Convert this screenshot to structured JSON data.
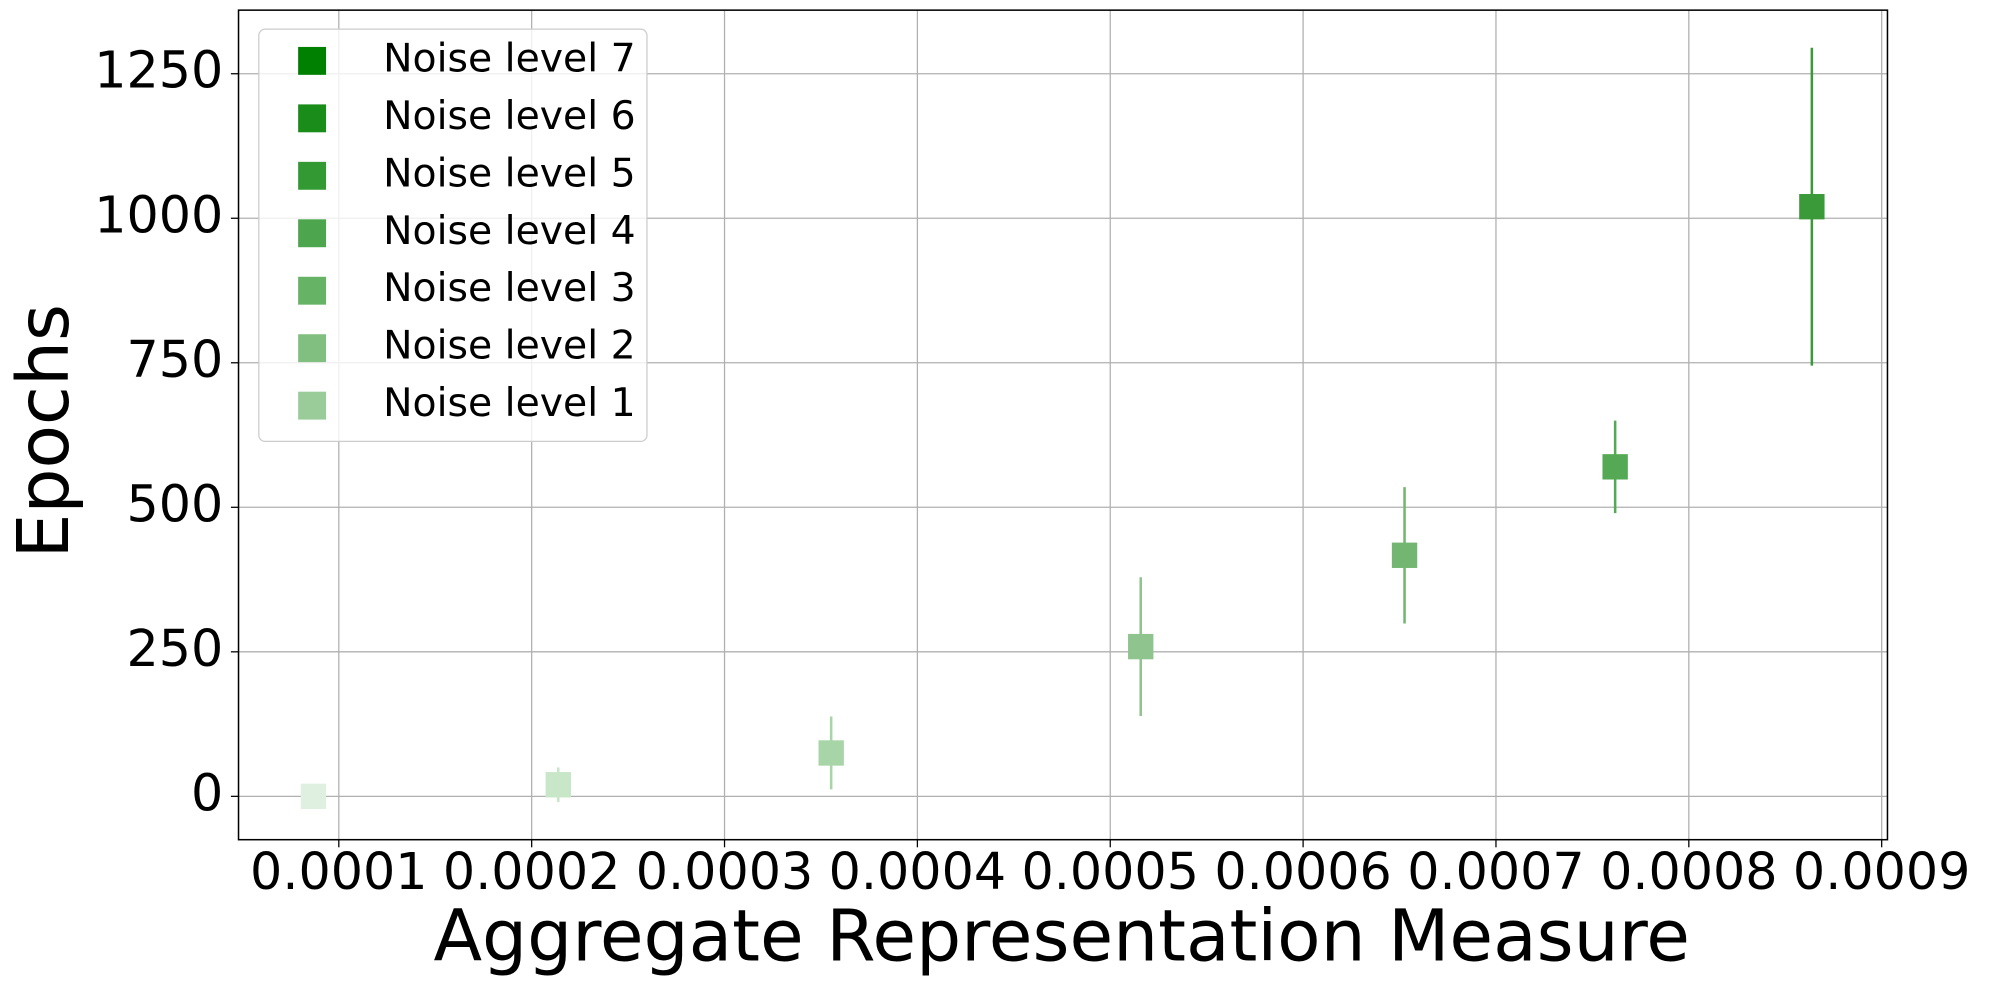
{
  "chart_data": {
    "type": "errorbar",
    "xlabel": "Aggregate Representation Measure",
    "ylabel": "Epochs",
    "xlim": [
      4.8e-05,
      0.000903
    ],
    "ylim": [
      -75,
      1360
    ],
    "xticks": [
      0.0001,
      0.0002,
      0.0003,
      0.0004,
      0.0005,
      0.0006,
      0.0007,
      0.0008,
      0.0009
    ],
    "yticks": [
      0,
      250,
      500,
      750,
      1000,
      1250
    ],
    "grid": true,
    "legend": "upper left",
    "series": [
      {
        "name": "Noise level 7",
        "color": "#3a9a3a",
        "legend_color": "#008000",
        "x": [
          0.0008638
        ],
        "values": [
          1020
        ],
        "errors": [
          275
        ]
      },
      {
        "name": "Noise level 6",
        "color": "#55a955",
        "legend_color": "#1a8c1a",
        "x": [
          0.0007618
        ],
        "values": [
          570
        ],
        "errors": [
          80
        ]
      },
      {
        "name": "Noise level 5",
        "color": "#72b672",
        "legend_color": "#339933",
        "x": [
          0.0006526
        ],
        "values": [
          417
        ],
        "errors": [
          118
        ]
      },
      {
        "name": "Noise level 4",
        "color": "#8fc48f",
        "legend_color": "#4da64d",
        "x": [
          0.0005158
        ],
        "values": [
          259
        ],
        "errors": [
          120
        ]
      },
      {
        "name": "Noise level 3",
        "color": "#a8d5a8",
        "legend_color": "#66b366",
        "x": [
          0.0003553
        ],
        "values": [
          75
        ],
        "errors": [
          63
        ]
      },
      {
        "name": "Noise level 2",
        "color": "#c8e6c8",
        "legend_color": "#80bf80",
        "x": [
          0.0002138
        ],
        "values": [
          20
        ],
        "errors": [
          30
        ]
      },
      {
        "name": "Noise level 1",
        "color": "#e0f0e0",
        "legend_color": "#99cc99",
        "x": [
          8.68e-05
        ],
        "values": [
          0
        ],
        "errors": [
          5
        ]
      }
    ]
  }
}
